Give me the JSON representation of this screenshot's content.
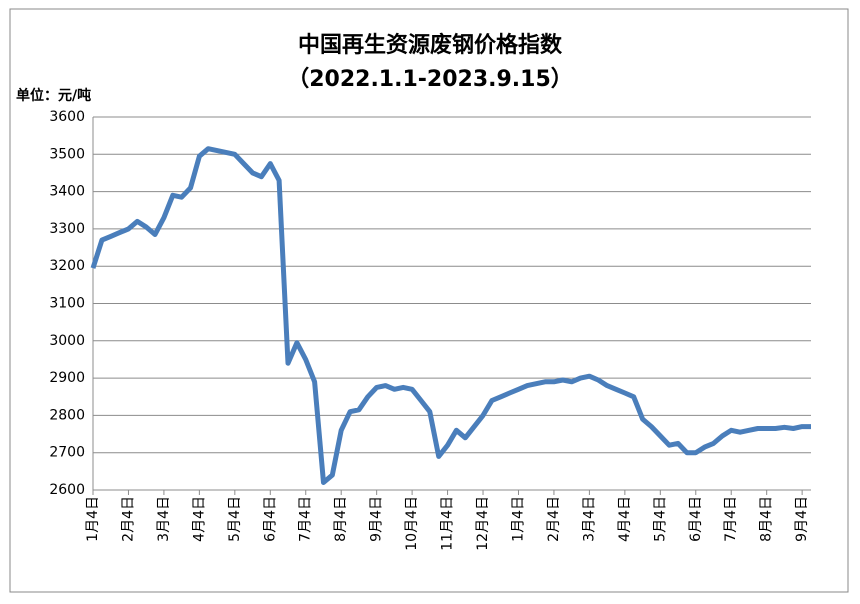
{
  "chart_data": {
    "type": "line",
    "title": "中国再生资源废钢价格指数",
    "subtitle": "（2022.1.1-2023.9.15）",
    "y_label": "单位：元/吨",
    "categories": [
      "1月4日",
      null,
      null,
      null,
      "2月4日",
      null,
      null,
      null,
      "3月4日",
      null,
      null,
      null,
      "4月4日",
      null,
      null,
      null,
      "5月4日",
      null,
      null,
      null,
      "6月4日",
      null,
      null,
      null,
      "7月4日",
      null,
      null,
      null,
      "8月4日",
      null,
      null,
      null,
      "9月4日",
      null,
      null,
      null,
      "10月4日",
      null,
      null,
      null,
      "11月4日",
      null,
      null,
      null,
      "12月4日",
      null,
      null,
      null,
      "1月4日",
      null,
      null,
      null,
      "2月4日",
      null,
      null,
      null,
      "3月4日",
      null,
      null,
      null,
      "4月4日",
      null,
      null,
      null,
      "5月4日",
      null,
      null,
      null,
      "6月4日",
      null,
      null,
      null,
      "7月4日",
      null,
      null,
      null,
      "8月4日",
      null,
      null,
      null,
      "9月4日",
      null
    ],
    "series": [
      {
        "name": "中国再生资源废钢价格指数",
        "color": "#4a7ebb",
        "values": [
          3195,
          3270,
          3280,
          3290,
          3300,
          3320,
          3305,
          3285,
          3330,
          3390,
          3385,
          3410,
          3495,
          3515,
          3510,
          3505,
          3500,
          3475,
          3450,
          3440,
          3475,
          3430,
          2940,
          2995,
          2950,
          2890,
          2620,
          2640,
          2760,
          2810,
          2815,
          2850,
          2875,
          2880,
          2870,
          2875,
          2870,
          2840,
          2810,
          2690,
          2720,
          2760,
          2740,
          2770,
          2800,
          2840,
          2850,
          2860,
          2870,
          2880,
          2885,
          2890,
          2890,
          2895,
          2890,
          2900,
          2905,
          2895,
          2880,
          2870,
          2860,
          2850,
          2790,
          2770,
          2745,
          2720,
          2725,
          2700,
          2700,
          2715,
          2725,
          2745,
          2760,
          2755,
          2760,
          2765,
          2765,
          2765,
          2768,
          2765,
          2770,
          2770
        ]
      }
    ],
    "ylim": [
      2600,
      3600
    ],
    "yticks": [
      2600,
      2700,
      2800,
      2900,
      3000,
      3100,
      3200,
      3300,
      3400,
      3500,
      3600
    ],
    "grid": true
  }
}
